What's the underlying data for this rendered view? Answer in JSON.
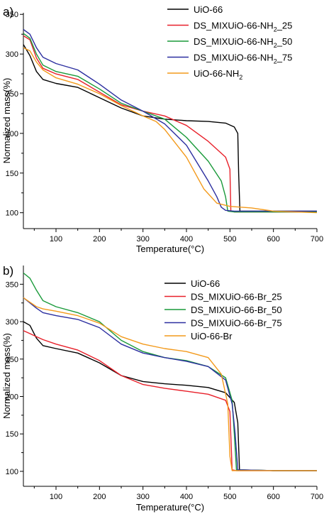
{
  "chart_data": [
    {
      "panel_label": "a)",
      "type": "line",
      "xlabel": "Temperature(°C)",
      "ylabel": "Normalized mass(%)",
      "xlim": [
        25,
        700
      ],
      "ylim": [
        80,
        352
      ],
      "xticks": [
        100,
        200,
        300,
        400,
        500,
        600,
        700
      ],
      "yticks": [
        100,
        150,
        200,
        250,
        300,
        350
      ],
      "legend_position": "top-right",
      "series": [
        {
          "name": "UiO-66",
          "color": "#000000",
          "x": [
            25,
            40,
            55,
            70,
            100,
            150,
            200,
            250,
            300,
            350,
            400,
            450,
            490,
            510,
            518,
            520,
            523,
            600,
            700
          ],
          "y": [
            312,
            298,
            278,
            268,
            263,
            258,
            245,
            232,
            222,
            218,
            216,
            215,
            213,
            208,
            200,
            150,
            102,
            102,
            102
          ]
        },
        {
          "name": "DS_MIXUiO-66-NH2_25",
          "color": "#e8202a",
          "x": [
            25,
            40,
            55,
            70,
            100,
            150,
            200,
            250,
            300,
            350,
            400,
            450,
            490,
            500,
            502,
            510,
            600,
            700
          ],
          "y": [
            323,
            318,
            295,
            282,
            275,
            268,
            252,
            236,
            228,
            222,
            210,
            190,
            170,
            155,
            102,
            101,
            101,
            101
          ]
        },
        {
          "name": "DS_MIXUiO-66-NH2_50",
          "color": "#1a9a3a",
          "x": [
            25,
            40,
            55,
            70,
            100,
            150,
            200,
            250,
            300,
            350,
            400,
            450,
            480,
            490,
            495,
            510,
            600,
            700
          ],
          "y": [
            326,
            320,
            300,
            286,
            278,
            272,
            256,
            238,
            228,
            218,
            195,
            165,
            140,
            120,
            102,
            101,
            101,
            101
          ]
        },
        {
          "name": "DS_MIXUiO-66-NH2_75",
          "color": "#2c2fa0",
          "x": [
            25,
            40,
            55,
            70,
            100,
            150,
            200,
            250,
            300,
            350,
            400,
            450,
            470,
            480,
            490,
            510,
            600,
            700
          ],
          "y": [
            331,
            325,
            308,
            296,
            288,
            280,
            262,
            242,
            228,
            212,
            185,
            140,
            120,
            107,
            103,
            102,
            102,
            102
          ]
        },
        {
          "name": "UiO-66-NH2",
          "color": "#f39a1c",
          "x": [
            25,
            40,
            55,
            70,
            100,
            150,
            200,
            250,
            300,
            330,
            350,
            400,
            440,
            470,
            500,
            550,
            600,
            700
          ],
          "y": [
            308,
            304,
            290,
            280,
            270,
            262,
            250,
            235,
            222,
            215,
            205,
            170,
            130,
            112,
            108,
            106,
            102,
            100
          ]
        }
      ]
    },
    {
      "panel_label": "b)",
      "type": "line",
      "xlabel": "Temperature(°C)",
      "ylabel": "Normalized mass(%)",
      "xlim": [
        25,
        700
      ],
      "ylim": [
        80,
        375
      ],
      "xticks": [
        100,
        200,
        300,
        400,
        500,
        600,
        700
      ],
      "yticks": [
        100,
        150,
        200,
        250,
        300,
        350
      ],
      "legend_position": "top-right",
      "series": [
        {
          "name": "UiO-66",
          "color": "#000000",
          "x": [
            25,
            40,
            55,
            70,
            100,
            150,
            200,
            250,
            300,
            350,
            400,
            450,
            490,
            510,
            518,
            522,
            600,
            700
          ],
          "y": [
            300,
            295,
            278,
            268,
            264,
            258,
            245,
            228,
            220,
            217,
            215,
            212,
            205,
            192,
            165,
            102,
            101,
            101
          ]
        },
        {
          "name": "DS_MIXUiO-66-Br_25",
          "color": "#e8202a",
          "x": [
            25,
            40,
            55,
            70,
            100,
            150,
            200,
            250,
            300,
            350,
            400,
            450,
            490,
            500,
            505,
            515,
            600,
            700
          ],
          "y": [
            288,
            284,
            280,
            276,
            270,
            262,
            248,
            228,
            216,
            211,
            207,
            203,
            195,
            180,
            102,
            101,
            101,
            101
          ]
        },
        {
          "name": "DS_MIXUiO-66-Br_50",
          "color": "#1a9a3a",
          "x": [
            25,
            40,
            55,
            70,
            100,
            150,
            200,
            250,
            300,
            350,
            400,
            450,
            490,
            505,
            510,
            515,
            600,
            700
          ],
          "y": [
            365,
            358,
            342,
            328,
            320,
            312,
            300,
            275,
            260,
            252,
            248,
            240,
            225,
            195,
            150,
            102,
            101,
            101
          ]
        },
        {
          "name": "DS_MIXUiO-66-Br_75",
          "color": "#2c2fa0",
          "x": [
            25,
            40,
            55,
            70,
            100,
            150,
            200,
            250,
            300,
            350,
            400,
            450,
            490,
            505,
            512,
            518,
            600,
            700
          ],
          "y": [
            332,
            325,
            318,
            312,
            308,
            303,
            292,
            270,
            258,
            252,
            247,
            240,
            222,
            190,
            150,
            102,
            101,
            101
          ]
        },
        {
          "name": "UiO-66-Br",
          "color": "#f39a1c",
          "x": [
            25,
            40,
            55,
            70,
            100,
            150,
            200,
            250,
            300,
            350,
            400,
            450,
            480,
            495,
            500,
            505,
            600,
            700
          ],
          "y": [
            332,
            326,
            320,
            317,
            314,
            308,
            298,
            280,
            270,
            264,
            260,
            252,
            230,
            190,
            120,
            101,
            101,
            101
          ]
        }
      ]
    }
  ]
}
